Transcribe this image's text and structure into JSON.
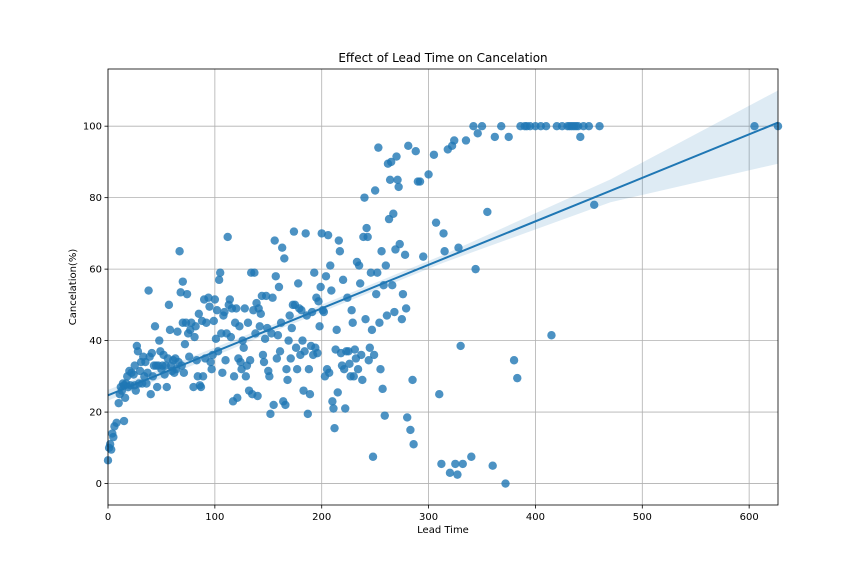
{
  "chart_data": {
    "type": "scatter",
    "title": "Effect of Lead Time on Cancelation",
    "xlabel": "Lead Time",
    "ylabel": "Cancelation(%)",
    "xlim": [
      0,
      627
    ],
    "ylim": [
      -6,
      116
    ],
    "xticks": [
      0,
      100,
      200,
      300,
      400,
      500,
      600
    ],
    "yticks": [
      0,
      20,
      40,
      60,
      80,
      100
    ],
    "grid": true,
    "colors": {
      "points": "#1f77b4",
      "line": "#1f77b4",
      "band": "#1f77b4"
    },
    "regression": {
      "x": [
        0,
        627
      ],
      "y": [
        24.7,
        101.0
      ],
      "ci_lower": [
        23.2,
        89.5
      ],
      "ci_upper": [
        26.2,
        110.0
      ]
    },
    "points": [
      [
        0,
        6.5
      ],
      [
        1,
        10
      ],
      [
        2,
        11
      ],
      [
        3,
        9.5
      ],
      [
        4,
        14
      ],
      [
        5,
        13
      ],
      [
        6,
        16
      ],
      [
        8,
        17
      ],
      [
        10,
        22.5
      ],
      [
        11,
        25
      ],
      [
        12,
        27
      ],
      [
        13,
        26
      ],
      [
        14,
        28
      ],
      [
        15,
        17.5
      ],
      [
        15,
        27.5
      ],
      [
        16,
        24
      ],
      [
        17,
        28
      ],
      [
        18,
        30
      ],
      [
        19,
        27
      ],
      [
        20,
        31.5
      ],
      [
        21,
        27.5
      ],
      [
        22,
        31
      ],
      [
        24,
        30.5
      ],
      [
        25,
        33
      ],
      [
        25,
        27.5
      ],
      [
        26,
        26
      ],
      [
        27,
        38.5
      ],
      [
        28,
        37
      ],
      [
        29,
        28
      ],
      [
        30,
        31.5
      ],
      [
        31,
        34
      ],
      [
        32,
        28
      ],
      [
        33,
        35.5
      ],
      [
        34,
        30
      ],
      [
        35,
        34
      ],
      [
        36,
        28
      ],
      [
        37,
        31
      ],
      [
        38,
        54
      ],
      [
        39,
        35.5
      ],
      [
        40,
        25
      ],
      [
        41,
        36.5
      ],
      [
        42,
        30
      ],
      [
        43,
        33
      ],
      [
        44,
        44
      ],
      [
        45,
        33
      ],
      [
        46,
        27
      ],
      [
        47,
        33
      ],
      [
        48,
        40
      ],
      [
        49,
        37
      ],
      [
        50,
        32
      ],
      [
        51,
        33
      ],
      [
        52,
        36
      ],
      [
        53,
        30.5
      ],
      [
        54,
        33
      ],
      [
        55,
        27
      ],
      [
        56,
        35
      ],
      [
        57,
        50
      ],
      [
        58,
        43
      ],
      [
        59,
        33
      ],
      [
        60,
        31.5
      ],
      [
        61,
        34.5
      ],
      [
        62,
        31
      ],
      [
        63,
        35
      ],
      [
        64,
        32
      ],
      [
        65,
        42.5
      ],
      [
        66,
        34
      ],
      [
        67,
        65
      ],
      [
        68,
        53.5
      ],
      [
        69,
        33
      ],
      [
        70,
        56.5
      ],
      [
        70,
        45
      ],
      [
        71,
        31
      ],
      [
        72,
        39
      ],
      [
        73,
        45
      ],
      [
        74,
        53
      ],
      [
        75,
        42
      ],
      [
        76,
        35.5
      ],
      [
        77,
        43
      ],
      [
        78,
        45
      ],
      [
        80,
        27
      ],
      [
        81,
        41
      ],
      [
        82,
        44
      ],
      [
        83,
        34.5
      ],
      [
        84,
        30
      ],
      [
        85,
        47.5
      ],
      [
        86,
        27.5
      ],
      [
        87,
        27
      ],
      [
        88,
        45.5
      ],
      [
        89,
        30
      ],
      [
        90,
        51.5
      ],
      [
        91,
        35
      ],
      [
        92,
        45
      ],
      [
        94,
        52
      ],
      [
        95,
        49.5
      ],
      [
        96,
        34
      ],
      [
        97,
        32
      ],
      [
        98,
        36
      ],
      [
        99,
        45.5
      ],
      [
        100,
        51.5
      ],
      [
        101,
        40.5
      ],
      [
        102,
        48.5
      ],
      [
        103,
        37
      ],
      [
        104,
        57
      ],
      [
        105,
        59
      ],
      [
        106,
        42
      ],
      [
        107,
        31
      ],
      [
        108,
        47
      ],
      [
        109,
        48
      ],
      [
        110,
        34.5
      ],
      [
        111,
        42
      ],
      [
        112,
        69
      ],
      [
        113,
        50
      ],
      [
        114,
        51.5
      ],
      [
        115,
        41
      ],
      [
        116,
        49
      ],
      [
        117,
        23
      ],
      [
        118,
        30
      ],
      [
        119,
        45
      ],
      [
        120,
        49
      ],
      [
        121,
        24
      ],
      [
        122,
        35
      ],
      [
        123,
        44
      ],
      [
        124,
        34
      ],
      [
        125,
        32
      ],
      [
        126,
        40
      ],
      [
        127,
        38
      ],
      [
        128,
        49
      ],
      [
        129,
        30
      ],
      [
        130,
        33
      ],
      [
        131,
        45
      ],
      [
        132,
        26
      ],
      [
        133,
        34.5
      ],
      [
        134,
        59
      ],
      [
        135,
        25
      ],
      [
        136,
        48.5
      ],
      [
        137,
        59
      ],
      [
        138,
        42
      ],
      [
        139,
        50.5
      ],
      [
        140,
        24.5
      ],
      [
        141,
        49
      ],
      [
        142,
        44
      ],
      [
        143,
        47.5
      ],
      [
        144,
        52.5
      ],
      [
        145,
        36
      ],
      [
        146,
        34
      ],
      [
        147,
        40.5
      ],
      [
        148,
        52.5
      ],
      [
        149,
        43.5
      ],
      [
        150,
        31.5
      ],
      [
        151,
        30
      ],
      [
        152,
        19.5
      ],
      [
        153,
        42
      ],
      [
        154,
        52
      ],
      [
        155,
        22
      ],
      [
        156,
        68
      ],
      [
        157,
        58
      ],
      [
        158,
        35
      ],
      [
        159,
        41.5
      ],
      [
        160,
        55
      ],
      [
        161,
        37
      ],
      [
        162,
        45
      ],
      [
        163,
        66
      ],
      [
        164,
        23
      ],
      [
        165,
        63
      ],
      [
        166,
        22
      ],
      [
        167,
        32
      ],
      [
        168,
        29
      ],
      [
        169,
        40
      ],
      [
        170,
        47
      ],
      [
        171,
        35
      ],
      [
        172,
        43.5
      ],
      [
        173,
        50
      ],
      [
        174,
        70.5
      ],
      [
        175,
        50
      ],
      [
        176,
        38
      ],
      [
        177,
        32
      ],
      [
        178,
        56
      ],
      [
        179,
        49
      ],
      [
        180,
        36
      ],
      [
        181,
        48.5
      ],
      [
        182,
        40
      ],
      [
        183,
        26
      ],
      [
        184,
        37
      ],
      [
        185,
        70
      ],
      [
        186,
        47
      ],
      [
        187,
        19.5
      ],
      [
        188,
        32
      ],
      [
        189,
        25
      ],
      [
        190,
        38.5
      ],
      [
        191,
        48
      ],
      [
        192,
        36
      ],
      [
        193,
        59
      ],
      [
        194,
        38
      ],
      [
        195,
        52
      ],
      [
        196,
        36.5
      ],
      [
        197,
        51
      ],
      [
        198,
        44
      ],
      [
        199,
        55
      ],
      [
        200,
        70
      ],
      [
        201,
        48.5
      ],
      [
        202,
        48
      ],
      [
        203,
        30
      ],
      [
        204,
        58
      ],
      [
        205,
        32
      ],
      [
        206,
        69.5
      ],
      [
        207,
        31
      ],
      [
        208,
        61
      ],
      [
        209,
        54
      ],
      [
        210,
        23
      ],
      [
        211,
        21
      ],
      [
        212,
        15.5
      ],
      [
        213,
        37.5
      ],
      [
        214,
        43
      ],
      [
        215,
        25.5
      ],
      [
        216,
        68
      ],
      [
        217,
        65
      ],
      [
        218,
        36.5
      ],
      [
        219,
        33
      ],
      [
        220,
        57
      ],
      [
        221,
        32
      ],
      [
        222,
        21
      ],
      [
        223,
        37
      ],
      [
        224,
        52
      ],
      [
        225,
        37
      ],
      [
        226,
        33.5
      ],
      [
        227,
        30
      ],
      [
        228,
        48.5
      ],
      [
        229,
        45
      ],
      [
        230,
        30
      ],
      [
        231,
        37.5
      ],
      [
        232,
        35
      ],
      [
        233,
        62
      ],
      [
        234,
        32
      ],
      [
        235,
        61
      ],
      [
        236,
        56
      ],
      [
        237,
        36
      ],
      [
        238,
        29
      ],
      [
        239,
        69
      ],
      [
        240,
        80
      ],
      [
        241,
        46
      ],
      [
        242,
        71.5
      ],
      [
        243,
        69
      ],
      [
        244,
        34.5
      ],
      [
        245,
        38
      ],
      [
        246,
        59
      ],
      [
        247,
        43
      ],
      [
        248,
        7.5
      ],
      [
        249,
        36
      ],
      [
        250,
        82
      ],
      [
        251,
        53
      ],
      [
        252,
        59
      ],
      [
        253,
        94
      ],
      [
        254,
        45
      ],
      [
        255,
        32
      ],
      [
        256,
        65
      ],
      [
        257,
        26.5
      ],
      [
        258,
        55.5
      ],
      [
        259,
        19
      ],
      [
        260,
        61
      ],
      [
        261,
        47
      ],
      [
        262,
        89.5
      ],
      [
        263,
        74
      ],
      [
        264,
        85
      ],
      [
        265,
        90
      ],
      [
        266,
        55.5
      ],
      [
        267,
        75.5
      ],
      [
        268,
        48
      ],
      [
        269,
        65.5
      ],
      [
        270,
        91.5
      ],
      [
        271,
        85
      ],
      [
        272,
        83
      ],
      [
        273,
        67
      ],
      [
        275,
        46
      ],
      [
        276,
        53
      ],
      [
        278,
        64
      ],
      [
        279,
        49
      ],
      [
        280,
        18.5
      ],
      [
        281,
        94.5
      ],
      [
        283,
        15
      ],
      [
        285,
        29
      ],
      [
        286,
        11
      ],
      [
        288,
        93
      ],
      [
        290,
        84.5
      ],
      [
        292,
        84.5
      ],
      [
        295,
        63.5
      ],
      [
        300,
        86.5
      ],
      [
        305,
        92
      ],
      [
        307,
        73
      ],
      [
        310,
        25
      ],
      [
        312,
        5.5
      ],
      [
        314,
        70
      ],
      [
        315,
        65
      ],
      [
        318,
        93.5
      ],
      [
        320,
        3
      ],
      [
        322,
        94.5
      ],
      [
        324,
        96
      ],
      [
        325,
        5.5
      ],
      [
        327,
        2.5
      ],
      [
        328,
        66
      ],
      [
        330,
        38.5
      ],
      [
        332,
        5.5
      ],
      [
        335,
        96
      ],
      [
        340,
        7.5
      ],
      [
        342,
        100
      ],
      [
        344,
        60
      ],
      [
        346,
        98
      ],
      [
        350,
        100
      ],
      [
        355,
        76
      ],
      [
        360,
        5
      ],
      [
        362,
        97
      ],
      [
        368,
        100
      ],
      [
        372,
        0
      ],
      [
        375,
        97
      ],
      [
        380,
        34.5
      ],
      [
        383,
        29.5
      ],
      [
        386,
        100
      ],
      [
        390,
        100
      ],
      [
        392,
        100
      ],
      [
        395,
        100
      ],
      [
        400,
        100
      ],
      [
        405,
        100
      ],
      [
        410,
        100
      ],
      [
        415,
        41.5
      ],
      [
        420,
        100
      ],
      [
        425,
        100
      ],
      [
        430,
        100
      ],
      [
        432,
        100
      ],
      [
        434,
        100
      ],
      [
        436,
        100
      ],
      [
        438,
        100
      ],
      [
        440,
        100
      ],
      [
        442,
        97
      ],
      [
        445,
        100
      ],
      [
        450,
        100
      ],
      [
        455,
        78
      ],
      [
        460,
        100
      ],
      [
        605,
        100
      ],
      [
        627,
        100
      ]
    ]
  }
}
